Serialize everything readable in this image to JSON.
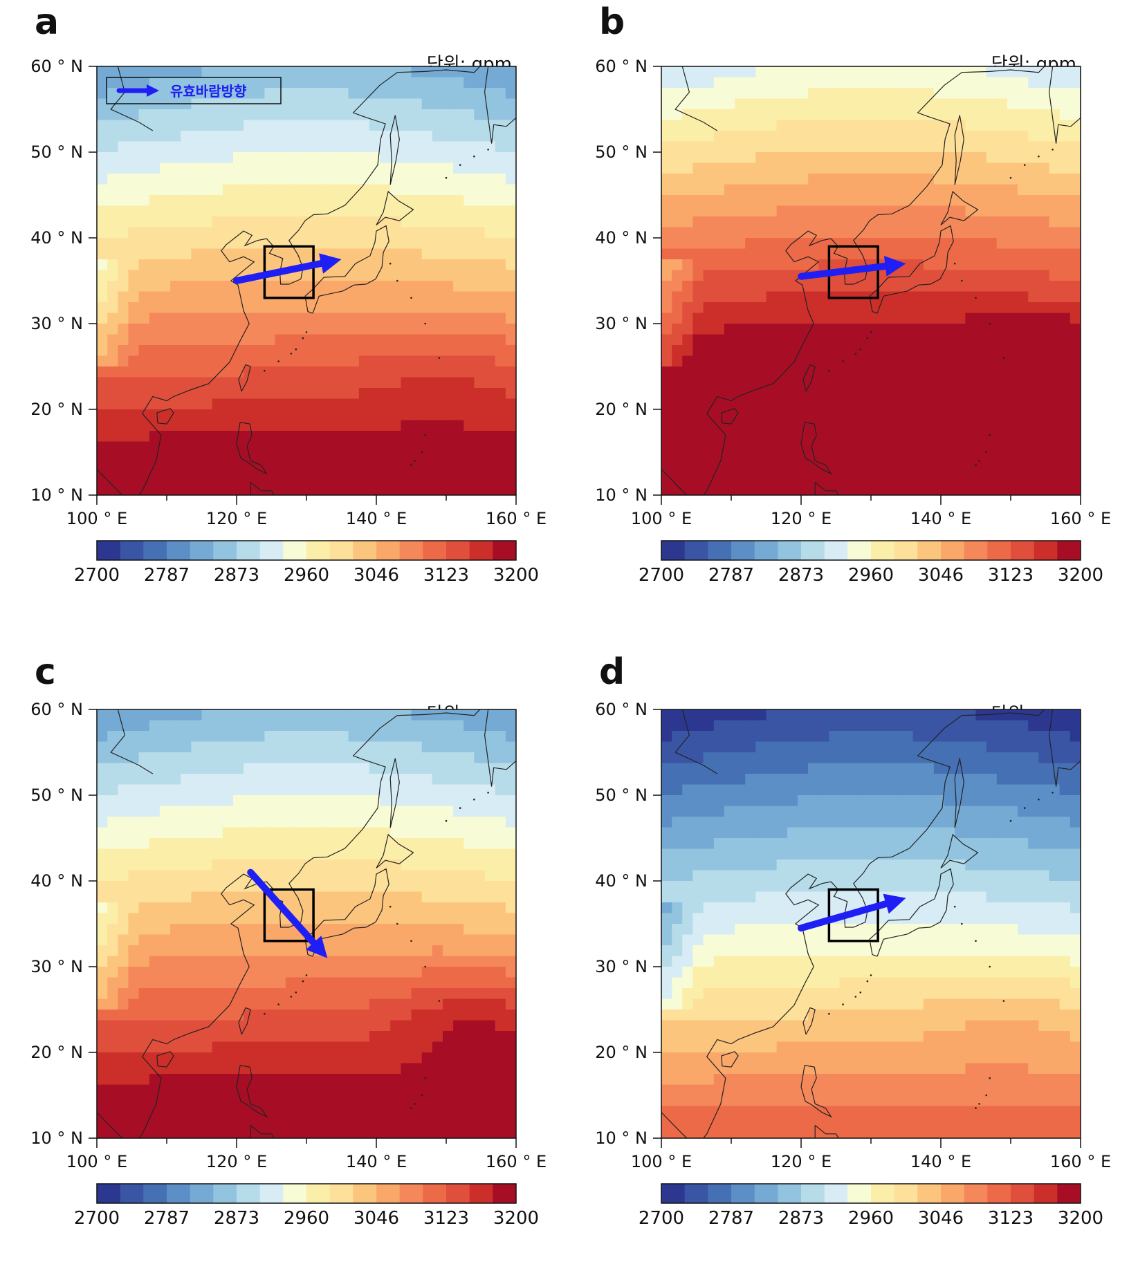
{
  "unit_label": "단위: gpm",
  "lat_labels": [
    "60 ° N",
    "50 ° N",
    "40 ° N",
    "30 ° N",
    "20 ° N",
    "10 ° N"
  ],
  "lon_labels": [
    "100 ° E",
    "120 ° E",
    "140 ° E",
    "160 ° E"
  ],
  "colorbar": {
    "ticks": [
      "2700",
      "2787",
      "2873",
      "2960",
      "3046",
      "3123",
      "3200"
    ],
    "colors": [
      "#2c3790",
      "#3a55a4",
      "#4670b4",
      "#5b8fc6",
      "#74aad3",
      "#92c3df",
      "#b6dcea",
      "#d7ecf4",
      "#f7fbd6",
      "#fbeea8",
      "#fde09a",
      "#fcc57e",
      "#f9a86a",
      "#f4885a",
      "#ec6a48",
      "#e04f3c",
      "#cc2f2a",
      "#a70e26"
    ]
  },
  "legend": {
    "label": "유효바람방향",
    "color": "#1f1ff5"
  },
  "panels": [
    {
      "letter": "a",
      "has_legend": true,
      "arrow": {
        "from": [
          120,
          35
        ],
        "to": [
          135,
          37.5
        ]
      }
    },
    {
      "letter": "b",
      "has_legend": false,
      "arrow": {
        "from": [
          120,
          35.5
        ],
        "to": [
          135,
          37
        ]
      }
    },
    {
      "letter": "c",
      "has_legend": false,
      "arrow": {
        "from": [
          122,
          41
        ],
        "to": [
          133,
          31
        ]
      }
    },
    {
      "letter": "d",
      "has_legend": false,
      "arrow": {
        "from": [
          120,
          34.5
        ],
        "to": [
          135,
          38
        ]
      }
    }
  ]
}
